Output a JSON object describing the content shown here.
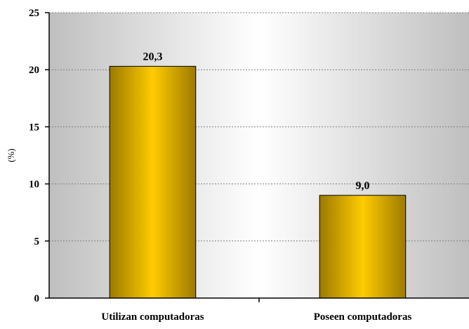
{
  "chart_data": {
    "type": "bar",
    "title": "",
    "xlabel": "",
    "ylabel": "(%)",
    "categories": [
      "Utilizan computadoras",
      "Poseen computadoras"
    ],
    "values": [
      20.3,
      9.0
    ],
    "data_labels": [
      "20,3",
      "9,0"
    ],
    "ylim": [
      0,
      25
    ],
    "yticks": [
      0,
      5,
      10,
      15,
      20,
      25
    ],
    "ytick_labels": [
      "0",
      "5",
      "10",
      "15",
      "20",
      "25"
    ],
    "grid": true,
    "legend": "none",
    "colors": {
      "bar_center": "#FFCC00",
      "bar_edge": "#9C7A00",
      "plot_background_edge": "#BFBFBF",
      "plot_background_center": "#FFFFFF",
      "gridline": "#808080"
    }
  }
}
